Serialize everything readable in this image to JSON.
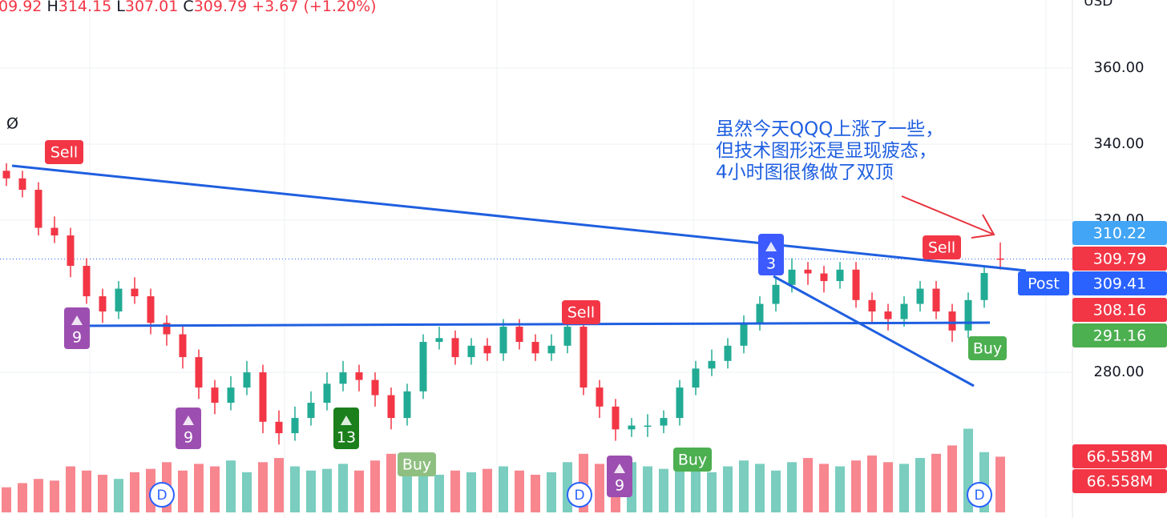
{
  "chart_data": {
    "type": "candlestick",
    "header": [
      "09.92",
      "H",
      "314.15",
      "L",
      "307.01",
      "C",
      "309.79",
      "+3.67 (+1.20%)"
    ],
    "currency": "USD",
    "indicator_symbol": "Ø",
    "annotation": [
      "虽然今天QQQ上涨了一些，",
      "但技术图形还是显现疲态，",
      "4小时图很像做了双顶"
    ],
    "open": [
      333,
      331,
      328,
      318,
      316,
      308,
      300,
      296,
      302,
      300,
      293,
      290,
      284,
      276,
      272,
      276,
      280,
      267,
      264,
      268,
      272,
      277,
      280,
      278,
      274,
      268,
      275,
      288,
      289,
      284,
      287,
      285,
      292,
      288,
      285,
      287,
      292,
      276,
      271,
      265,
      266,
      266,
      268,
      276,
      281,
      283,
      287,
      293,
      298,
      303,
      307,
      306,
      304,
      307,
      299,
      296,
      294,
      298,
      302,
      296,
      291,
      299,
      309.92
    ],
    "high": [
      335,
      333,
      330,
      321,
      318,
      310,
      302,
      304,
      305,
      302,
      295,
      292,
      286,
      278,
      279,
      283,
      282,
      270,
      271,
      275,
      280,
      283,
      282,
      280,
      276,
      277,
      290,
      292,
      291,
      289,
      289,
      294,
      294,
      290,
      290,
      294,
      294,
      278,
      273,
      268,
      269,
      270,
      278,
      283,
      286,
      289,
      295,
      300,
      305,
      310,
      309,
      308,
      309,
      309,
      301,
      298,
      300,
      304,
      304,
      298,
      301,
      308,
      314.15
    ],
    "low": [
      329,
      326,
      316,
      314,
      305,
      298,
      293,
      294,
      298,
      290,
      287,
      281,
      273,
      269,
      270,
      274,
      264,
      261,
      262,
      266,
      270,
      275,
      275,
      271,
      265,
      266,
      273,
      286,
      282,
      282,
      283,
      283,
      286,
      283,
      283,
      285,
      274,
      268,
      262,
      263,
      263,
      264,
      266,
      274,
      279,
      281,
      285,
      291,
      296,
      301,
      303,
      301,
      302,
      297,
      293,
      291,
      292,
      296,
      294,
      288,
      289,
      297,
      307.01
    ],
    "close": [
      331,
      328,
      318,
      316,
      308,
      300,
      296,
      302,
      300,
      293,
      290,
      284,
      276,
      272,
      276,
      280,
      267,
      264,
      268,
      272,
      277,
      280,
      278,
      274,
      268,
      275,
      288,
      289,
      284,
      287,
      285,
      292,
      288,
      285,
      287,
      292,
      276,
      271,
      265,
      266,
      266,
      268,
      276,
      281,
      283,
      287,
      293,
      298,
      303,
      307,
      306,
      304,
      307,
      299,
      296,
      294,
      298,
      302,
      296,
      291,
      299,
      306.12,
      309.79
    ],
    "volume": [
      30,
      35,
      40,
      38,
      55,
      50,
      45,
      40,
      48,
      52,
      60,
      50,
      58,
      55,
      62,
      48,
      60,
      65,
      55,
      50,
      52,
      58,
      50,
      62,
      70,
      60,
      55,
      45,
      50,
      48,
      52,
      55,
      50,
      45,
      48,
      60,
      70,
      58,
      65,
      60,
      55,
      52,
      58,
      50,
      48,
      55,
      62,
      58,
      50,
      60,
      65,
      58,
      55,
      62,
      68,
      60,
      58,
      65,
      70,
      80,
      100,
      72,
      66.558
    ],
    "volume_lim": [
      0,
      110
    ],
    "up_color": "#22ab94",
    "down_color": "#f23645",
    "ylim": [
      241.7,
      377.9
    ],
    "yticks": [
      {
        "value": 280,
        "label": "280.00"
      },
      {
        "value": 320,
        "label": "320.00"
      },
      {
        "value": 340,
        "label": "340.00"
      },
      {
        "value": 360,
        "label": "360.00"
      }
    ],
    "grid": true,
    "price_tags": [
      {
        "label": "310.22",
        "color": "#42a5f5"
      },
      {
        "label": "309.79",
        "color": "#f23645"
      },
      {
        "label": "309.41",
        "color": "#2962ff",
        "prefix": "Post"
      },
      {
        "label": "308.16",
        "color": "#f23645"
      },
      {
        "label": "291.16",
        "color": "#4caf50"
      },
      {
        "label": "66.558M",
        "color": "#f23645"
      },
      {
        "label": "66.558M",
        "color": "#f23645"
      }
    ],
    "signals": [
      {
        "label": "Sell",
        "color": "#f23645"
      },
      {
        "label": "9",
        "color": "#9c4fb0"
      },
      {
        "label": "9",
        "color": "#9c4fb0"
      },
      {
        "label": "13",
        "color": "#1b7f1b"
      },
      {
        "label": "Buy",
        "color": "#8fbf80"
      },
      {
        "label": "Sell",
        "color": "#f23645"
      },
      {
        "label": "9",
        "color": "#9c4fb0"
      },
      {
        "label": "Buy",
        "color": "#4caf50"
      },
      {
        "label": "3",
        "color": "#3d5afe"
      },
      {
        "label": "Sell",
        "color": "#f23645"
      },
      {
        "label": "Buy",
        "color": "#4caf50"
      }
    ],
    "event_markers": [
      "D",
      "D",
      "D"
    ]
  }
}
